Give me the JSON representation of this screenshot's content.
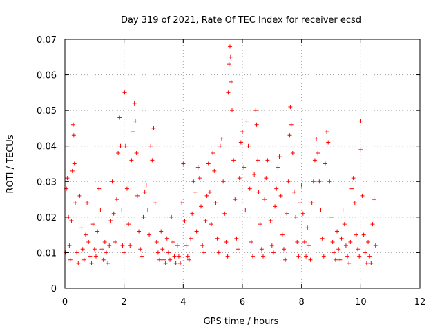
{
  "chart_data": {
    "type": "scatter",
    "title": "Day 319 of 2021, Rate Of TEC Index for receiver ecsd",
    "xlabel": "GPS time / hours",
    "ylabel": "ROTI / TECUs",
    "xlim": [
      0,
      12
    ],
    "ylim": [
      0,
      0.07
    ],
    "x_ticks": [
      0,
      2,
      4,
      6,
      8,
      10,
      12
    ],
    "y_ticks": [
      0,
      0.01,
      0.02,
      0.03,
      0.04,
      0.05,
      0.06,
      0.07
    ],
    "x_tick_labels": [
      "0",
      "2",
      "4",
      "6",
      "8",
      "10",
      "12"
    ],
    "y_tick_labels": [
      "0",
      "0.01",
      "0.02",
      "0.03",
      "0.04",
      "0.05",
      "0.06",
      "0.07"
    ],
    "grid": true,
    "marker": "+",
    "series": [
      {
        "name": "ROTI",
        "color": "#ff0000",
        "points": [
          [
            0.02,
            0.01
          ],
          [
            0.05,
            0.028
          ],
          [
            0.08,
            0.031
          ],
          [
            0.12,
            0.02
          ],
          [
            0.15,
            0.012
          ],
          [
            0.18,
            0.008
          ],
          [
            0.22,
            0.019
          ],
          [
            0.25,
            0.033
          ],
          [
            0.28,
            0.046
          ],
          [
            0.3,
            0.043
          ],
          [
            0.32,
            0.035
          ],
          [
            0.35,
            0.024
          ],
          [
            0.4,
            0.01
          ],
          [
            0.45,
            0.007
          ],
          [
            0.5,
            0.026
          ],
          [
            0.55,
            0.017
          ],
          [
            0.6,
            0.011
          ],
          [
            0.65,
            0.008
          ],
          [
            0.7,
            0.015
          ],
          [
            0.75,
            0.024
          ],
          [
            0.8,
            0.013
          ],
          [
            0.85,
            0.009
          ],
          [
            0.9,
            0.007
          ],
          [
            0.95,
            0.018
          ],
          [
            1.0,
            0.011
          ],
          [
            1.05,
            0.009
          ],
          [
            1.1,
            0.016
          ],
          [
            1.15,
            0.028
          ],
          [
            1.2,
            0.022
          ],
          [
            1.25,
            0.011
          ],
          [
            1.3,
            0.008
          ],
          [
            1.35,
            0.013
          ],
          [
            1.4,
            0.01
          ],
          [
            1.45,
            0.007
          ],
          [
            1.5,
            0.012
          ],
          [
            1.55,
            0.019
          ],
          [
            1.6,
            0.03
          ],
          [
            1.65,
            0.021
          ],
          [
            1.7,
            0.013
          ],
          [
            1.75,
            0.025
          ],
          [
            1.8,
            0.038
          ],
          [
            1.85,
            0.048
          ],
          [
            1.88,
            0.04
          ],
          [
            1.92,
            0.022
          ],
          [
            1.95,
            0.012
          ],
          [
            2.0,
            0.01
          ],
          [
            2.02,
            0.055
          ],
          [
            2.05,
            0.04
          ],
          [
            2.1,
            0.028
          ],
          [
            2.15,
            0.018
          ],
          [
            2.2,
            0.012
          ],
          [
            2.25,
            0.036
          ],
          [
            2.3,
            0.044
          ],
          [
            2.35,
            0.052
          ],
          [
            2.38,
            0.047
          ],
          [
            2.42,
            0.038
          ],
          [
            2.45,
            0.026
          ],
          [
            2.5,
            0.016
          ],
          [
            2.55,
            0.011
          ],
          [
            2.6,
            0.009
          ],
          [
            2.65,
            0.02
          ],
          [
            2.7,
            0.027
          ],
          [
            2.75,
            0.029
          ],
          [
            2.8,
            0.022
          ],
          [
            2.85,
            0.015
          ],
          [
            2.9,
            0.04
          ],
          [
            2.95,
            0.036
          ],
          [
            3.0,
            0.045
          ],
          [
            3.05,
            0.024
          ],
          [
            3.1,
            0.013
          ],
          [
            3.15,
            0.01
          ],
          [
            3.2,
            0.008
          ],
          [
            3.25,
            0.016
          ],
          [
            3.3,
            0.011
          ],
          [
            3.35,
            0.008
          ],
          [
            3.4,
            0.007
          ],
          [
            3.45,
            0.014
          ],
          [
            3.5,
            0.01
          ],
          [
            3.55,
            0.008
          ],
          [
            3.6,
            0.02
          ],
          [
            3.65,
            0.013
          ],
          [
            3.7,
            0.009
          ],
          [
            3.75,
            0.007
          ],
          [
            3.8,
            0.012
          ],
          [
            3.85,
            0.009
          ],
          [
            3.9,
            0.007
          ],
          [
            3.95,
            0.024
          ],
          [
            4.0,
            0.035
          ],
          [
            4.05,
            0.019
          ],
          [
            4.1,
            0.012
          ],
          [
            4.15,
            0.009
          ],
          [
            4.2,
            0.008
          ],
          [
            4.25,
            0.014
          ],
          [
            4.3,
            0.021
          ],
          [
            4.35,
            0.03
          ],
          [
            4.4,
            0.027
          ],
          [
            4.45,
            0.016
          ],
          [
            4.5,
            0.034
          ],
          [
            4.55,
            0.031
          ],
          [
            4.6,
            0.023
          ],
          [
            4.65,
            0.012
          ],
          [
            4.7,
            0.01
          ],
          [
            4.75,
            0.019
          ],
          [
            4.8,
            0.026
          ],
          [
            4.85,
            0.035
          ],
          [
            4.9,
            0.027
          ],
          [
            4.95,
            0.018
          ],
          [
            5.0,
            0.038
          ],
          [
            5.05,
            0.033
          ],
          [
            5.1,
            0.024
          ],
          [
            5.15,
            0.014
          ],
          [
            5.2,
            0.01
          ],
          [
            5.25,
            0.04
          ],
          [
            5.3,
            0.042
          ],
          [
            5.35,
            0.03
          ],
          [
            5.4,
            0.021
          ],
          [
            5.45,
            0.013
          ],
          [
            5.5,
            0.009
          ],
          [
            5.52,
            0.055
          ],
          [
            5.55,
            0.063
          ],
          [
            5.58,
            0.068
          ],
          [
            5.6,
            0.065
          ],
          [
            5.62,
            0.058
          ],
          [
            5.65,
            0.05
          ],
          [
            5.7,
            0.036
          ],
          [
            5.75,
            0.025
          ],
          [
            5.8,
            0.014
          ],
          [
            5.85,
            0.011
          ],
          [
            5.9,
            0.031
          ],
          [
            5.95,
            0.041
          ],
          [
            6.0,
            0.044
          ],
          [
            6.05,
            0.034
          ],
          [
            6.1,
            0.022
          ],
          [
            6.15,
            0.047
          ],
          [
            6.2,
            0.04
          ],
          [
            6.25,
            0.028
          ],
          [
            6.3,
            0.013
          ],
          [
            6.35,
            0.009
          ],
          [
            6.4,
            0.032
          ],
          [
            6.45,
            0.05
          ],
          [
            6.48,
            0.046
          ],
          [
            6.52,
            0.036
          ],
          [
            6.55,
            0.027
          ],
          [
            6.6,
            0.018
          ],
          [
            6.65,
            0.011
          ],
          [
            6.7,
            0.009
          ],
          [
            6.75,
            0.025
          ],
          [
            6.8,
            0.031
          ],
          [
            6.85,
            0.036
          ],
          [
            6.9,
            0.029
          ],
          [
            6.95,
            0.019
          ],
          [
            7.0,
            0.012
          ],
          [
            7.05,
            0.01
          ],
          [
            7.1,
            0.023
          ],
          [
            7.15,
            0.028
          ],
          [
            7.2,
            0.034
          ],
          [
            7.25,
            0.037
          ],
          [
            7.3,
            0.026
          ],
          [
            7.35,
            0.015
          ],
          [
            7.4,
            0.011
          ],
          [
            7.45,
            0.008
          ],
          [
            7.5,
            0.021
          ],
          [
            7.55,
            0.03
          ],
          [
            7.6,
            0.043
          ],
          [
            7.62,
            0.051
          ],
          [
            7.65,
            0.046
          ],
          [
            7.7,
            0.038
          ],
          [
            7.75,
            0.027
          ],
          [
            7.8,
            0.02
          ],
          [
            7.85,
            0.013
          ],
          [
            7.9,
            0.009
          ],
          [
            7.95,
            0.024
          ],
          [
            8.0,
            0.029
          ],
          [
            8.05,
            0.021
          ],
          [
            8.1,
            0.013
          ],
          [
            8.15,
            0.009
          ],
          [
            8.2,
            0.017
          ],
          [
            8.25,
            0.012
          ],
          [
            8.3,
            0.008
          ],
          [
            8.35,
            0.024
          ],
          [
            8.4,
            0.03
          ],
          [
            8.45,
            0.036
          ],
          [
            8.5,
            0.042
          ],
          [
            8.55,
            0.038
          ],
          [
            8.6,
            0.03
          ],
          [
            8.65,
            0.022
          ],
          [
            8.7,
            0.014
          ],
          [
            8.75,
            0.009
          ],
          [
            8.8,
            0.035
          ],
          [
            8.85,
            0.044
          ],
          [
            8.9,
            0.041
          ],
          [
            8.95,
            0.03
          ],
          [
            9.0,
            0.02
          ],
          [
            9.05,
            0.013
          ],
          [
            9.1,
            0.01
          ],
          [
            9.15,
            0.008
          ],
          [
            9.2,
            0.016
          ],
          [
            9.25,
            0.011
          ],
          [
            9.3,
            0.008
          ],
          [
            9.35,
            0.014
          ],
          [
            9.4,
            0.022
          ],
          [
            9.45,
            0.018
          ],
          [
            9.5,
            0.012
          ],
          [
            9.55,
            0.009
          ],
          [
            9.6,
            0.007
          ],
          [
            9.65,
            0.013
          ],
          [
            9.7,
            0.028
          ],
          [
            9.75,
            0.031
          ],
          [
            9.8,
            0.024
          ],
          [
            9.85,
            0.015
          ],
          [
            9.9,
            0.011
          ],
          [
            9.95,
            0.009
          ],
          [
            9.98,
            0.047
          ],
          [
            10.0,
            0.039
          ],
          [
            10.05,
            0.026
          ],
          [
            10.1,
            0.015
          ],
          [
            10.15,
            0.01
          ],
          [
            10.2,
            0.007
          ],
          [
            10.25,
            0.013
          ],
          [
            10.3,
            0.009
          ],
          [
            10.35,
            0.007
          ],
          [
            10.4,
            0.018
          ],
          [
            10.45,
            0.025
          ],
          [
            10.5,
            0.012
          ]
        ]
      }
    ]
  }
}
